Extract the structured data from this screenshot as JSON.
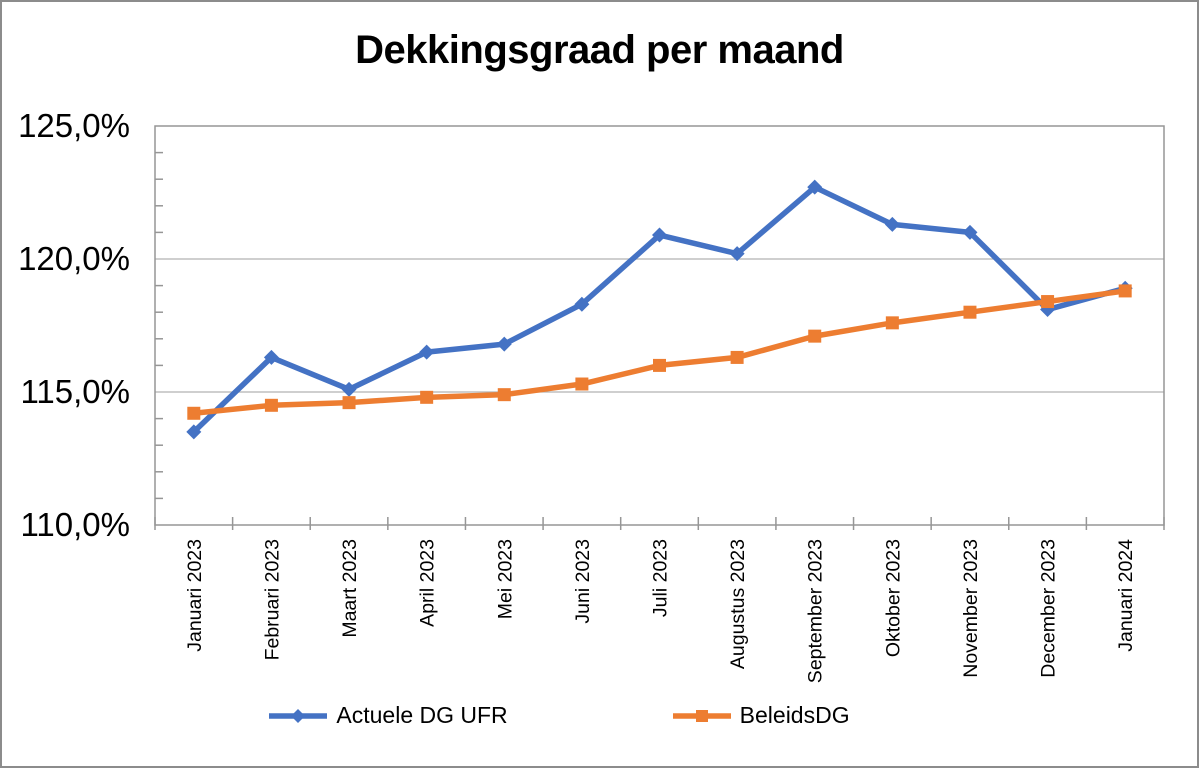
{
  "window": {
    "background": "#ffffff",
    "border_color": "#8c8c8c"
  },
  "chart_data": {
    "type": "line",
    "title": "Dekkingsgraad per maand",
    "categories": [
      "Januari 2023",
      "Februari 2023",
      "Maart 2023",
      "April 2023",
      "Mei 2023",
      "Juni 2023",
      "Juli 2023",
      "Augustus 2023",
      "September 2023",
      "Oktober 2023",
      "November 2023",
      "December 2023",
      "Januari 2024"
    ],
    "series": [
      {
        "name": "Actuele DG UFR",
        "color": "#4472C4",
        "marker": "diamond",
        "values": [
          113.5,
          116.3,
          115.1,
          116.5,
          116.8,
          118.3,
          120.9,
          120.2,
          122.7,
          121.3,
          121.0,
          118.1,
          118.9
        ]
      },
      {
        "name": "BeleidsDG",
        "color": "#ED7D31",
        "marker": "square",
        "values": [
          114.2,
          114.5,
          114.6,
          114.8,
          114.9,
          115.3,
          116.0,
          116.3,
          117.1,
          117.6,
          118.0,
          118.4,
          118.8
        ]
      }
    ],
    "ylim": [
      110,
      125
    ],
    "y_major_unit": 5,
    "y_minor_unit": 1,
    "y_tick_values": [
      125,
      120,
      115,
      110
    ],
    "y_tick_labels": [
      "125,0%",
      "120,0%",
      "115,0%",
      "110,0%"
    ],
    "gridline_values": [
      120,
      115
    ],
    "grid": "horizontal-major",
    "legend_position": "bottom",
    "xlabel": "",
    "ylabel": "",
    "axis_color": "#969696",
    "gridline_color": "#b2b2b2",
    "text_color": "#000000"
  }
}
